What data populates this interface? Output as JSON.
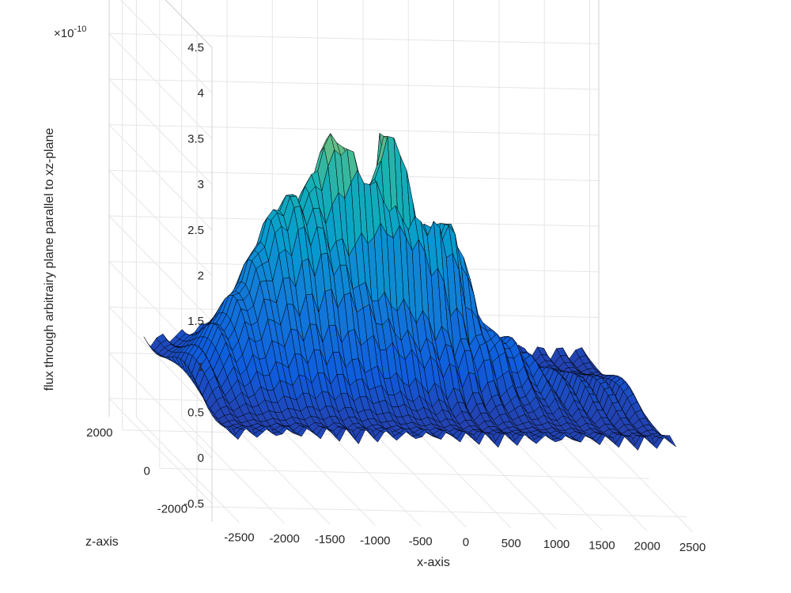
{
  "chart_data": {
    "type": "surface",
    "title": "",
    "xlabel": "x-axis",
    "zlabel_depth": "z-axis",
    "ylabel": "flux through arbitrairy plane parallel to xz-plane",
    "exponent_label": "×10",
    "exponent_power": "-10",
    "x_ticks": [
      "-2500",
      "-2000",
      "-1500",
      "-1000",
      "-500",
      "0",
      "500",
      "1000",
      "1500",
      "2000",
      "2500"
    ],
    "x_tick_values": [
      -2500,
      -2000,
      -1500,
      -1000,
      -500,
      0,
      500,
      1000,
      1500,
      2000,
      2500
    ],
    "z_ticks": [
      "2000",
      "0",
      "-2000"
    ],
    "z_tick_values": [
      2000,
      0,
      -2000
    ],
    "y_ticks": [
      "-0.5",
      "0",
      "0.5",
      "1",
      "1.5",
      "2",
      "2.5",
      "3",
      "3.5",
      "4",
      "4.5"
    ],
    "y_tick_values": [
      -0.5,
      0,
      0.5,
      1,
      1.5,
      2,
      2.5,
      3,
      3.5,
      4,
      4.5
    ],
    "xlim": [
      -2800,
      2600
    ],
    "zlim": [
      -2800,
      2700
    ],
    "ylim": [
      -0.7,
      4.5
    ],
    "grid": true,
    "colormap": "parula",
    "edge_color": "#000000",
    "peak": {
      "x": -100,
      "z": 1200,
      "value": 3.6
    },
    "description_values": {
      "baseline_flux": 0.3,
      "central_dome_max": 3.0,
      "left_ridge_max": 2.1
    }
  }
}
